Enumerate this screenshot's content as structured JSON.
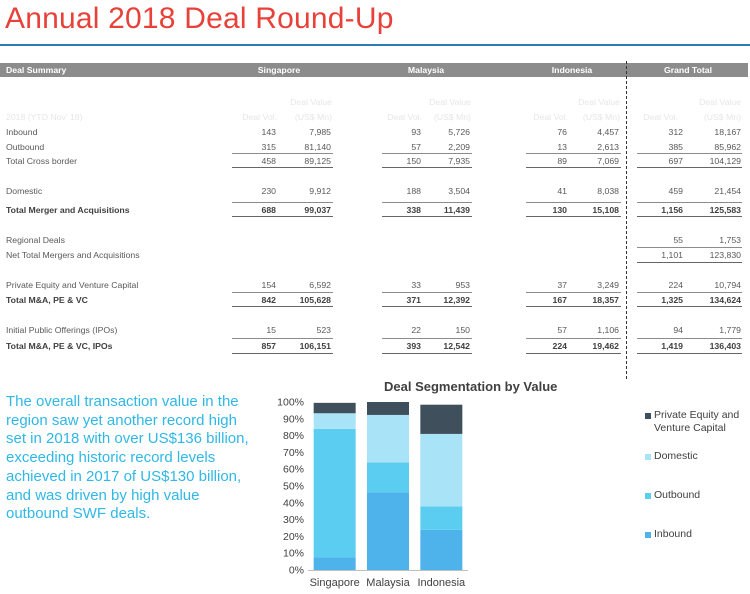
{
  "title": "Annual 2018 Deal Round-Up",
  "table": {
    "header": {
      "label": "Deal Summary",
      "groups": [
        "Singapore",
        "Malaysia",
        "Indonesia",
        "Grand Total"
      ],
      "period": "2018 (YTD Nov' 18)",
      "vol_label": "Deal Vol.",
      "value_label_1": "Deal Value",
      "value_label_2": "(US$ Mn)"
    },
    "rows": [
      {
        "label": "Inbound",
        "vals": [
          "143",
          "7,985",
          "93",
          "5,726",
          "76",
          "4,457",
          "312",
          "18,167"
        ]
      },
      {
        "label": "Outbound",
        "vals": [
          "315",
          "81,140",
          "57",
          "2,209",
          "13",
          "2,613",
          "385",
          "85,962"
        ]
      },
      {
        "label": "Total Cross border",
        "vals": [
          "458",
          "89,125",
          "150",
          "7,935",
          "89",
          "7,069",
          "697",
          "104,129"
        ]
      },
      {
        "label": "Domestic",
        "vals": [
          "230",
          "9,912",
          "188",
          "3,504",
          "41",
          "8,038",
          "459",
          "21,454"
        ]
      },
      {
        "label": "Total Merger and Acquisitions",
        "vals": [
          "688",
          "99,037",
          "338",
          "11,439",
          "130",
          "15,108",
          "1,156",
          "125,583"
        ]
      },
      {
        "label": "Regional Deals",
        "vals": [
          "",
          "",
          "",
          "",
          "",
          "",
          "55",
          "1,753"
        ]
      },
      {
        "label": "Net Total Mergers and Acquisitions",
        "vals": [
          "",
          "",
          "",
          "",
          "",
          "",
          "1,101",
          "123,830"
        ]
      },
      {
        "label": "Private Equity and Venture Capital",
        "vals": [
          "154",
          "6,592",
          "33",
          "953",
          "37",
          "3,249",
          "224",
          "10,794"
        ]
      },
      {
        "label": "Total M&A, PE & VC",
        "vals": [
          "842",
          "105,628",
          "371",
          "12,392",
          "167",
          "18,357",
          "1,325",
          "134,624"
        ]
      },
      {
        "label": "Initial Public Offerings (IPOs)",
        "vals": [
          "15",
          "523",
          "22",
          "150",
          "57",
          "1,106",
          "94",
          "1,779"
        ]
      },
      {
        "label": "Total M&A, PE & VC, IPOs",
        "vals": [
          "857",
          "106,151",
          "393",
          "12,542",
          "224",
          "19,462",
          "1,419",
          "136,403"
        ]
      }
    ]
  },
  "description": "The overall transaction value in the region saw yet another record high set in 2018 with over US$136 billion, exceeding historic record levels achieved in 2017 of US$130 billion, and was driven by high value outbound SWF deals.",
  "colors": {
    "title": "#e8413a",
    "text_accent": "#2fb8e6",
    "rule": "#2b7bb9"
  },
  "chart_data": {
    "type": "bar",
    "stacked": true,
    "title": "Deal Segmentation by Value",
    "categories": [
      "Singapore",
      "Malaysia",
      "Indonesia"
    ],
    "yticks": [
      "0%",
      "10%",
      "20%",
      "30%",
      "40%",
      "50%",
      "60%",
      "70%",
      "80%",
      "90%",
      "100%"
    ],
    "ylim": [
      0,
      100
    ],
    "series": [
      {
        "name": "Inbound",
        "color": "#4db3ea",
        "values": [
          7.5,
          46.3,
          23.9
        ]
      },
      {
        "name": "Outbound",
        "color": "#5bcdf0",
        "values": [
          76.5,
          17.8,
          14.0
        ]
      },
      {
        "name": "Domestic",
        "color": "#a9e3f7",
        "values": [
          9.3,
          28.2,
          43.1
        ]
      },
      {
        "name": "Private Equity and Venture Capital",
        "color": "#3f4f5b",
        "values": [
          6.2,
          7.7,
          17.4
        ]
      }
    ],
    "legend_labels": [
      [
        "Private Equity and",
        "Venture Capital"
      ],
      [
        "Domestic"
      ],
      [
        "Outbound"
      ],
      [
        "Inbound"
      ]
    ],
    "legend_position": "right"
  }
}
